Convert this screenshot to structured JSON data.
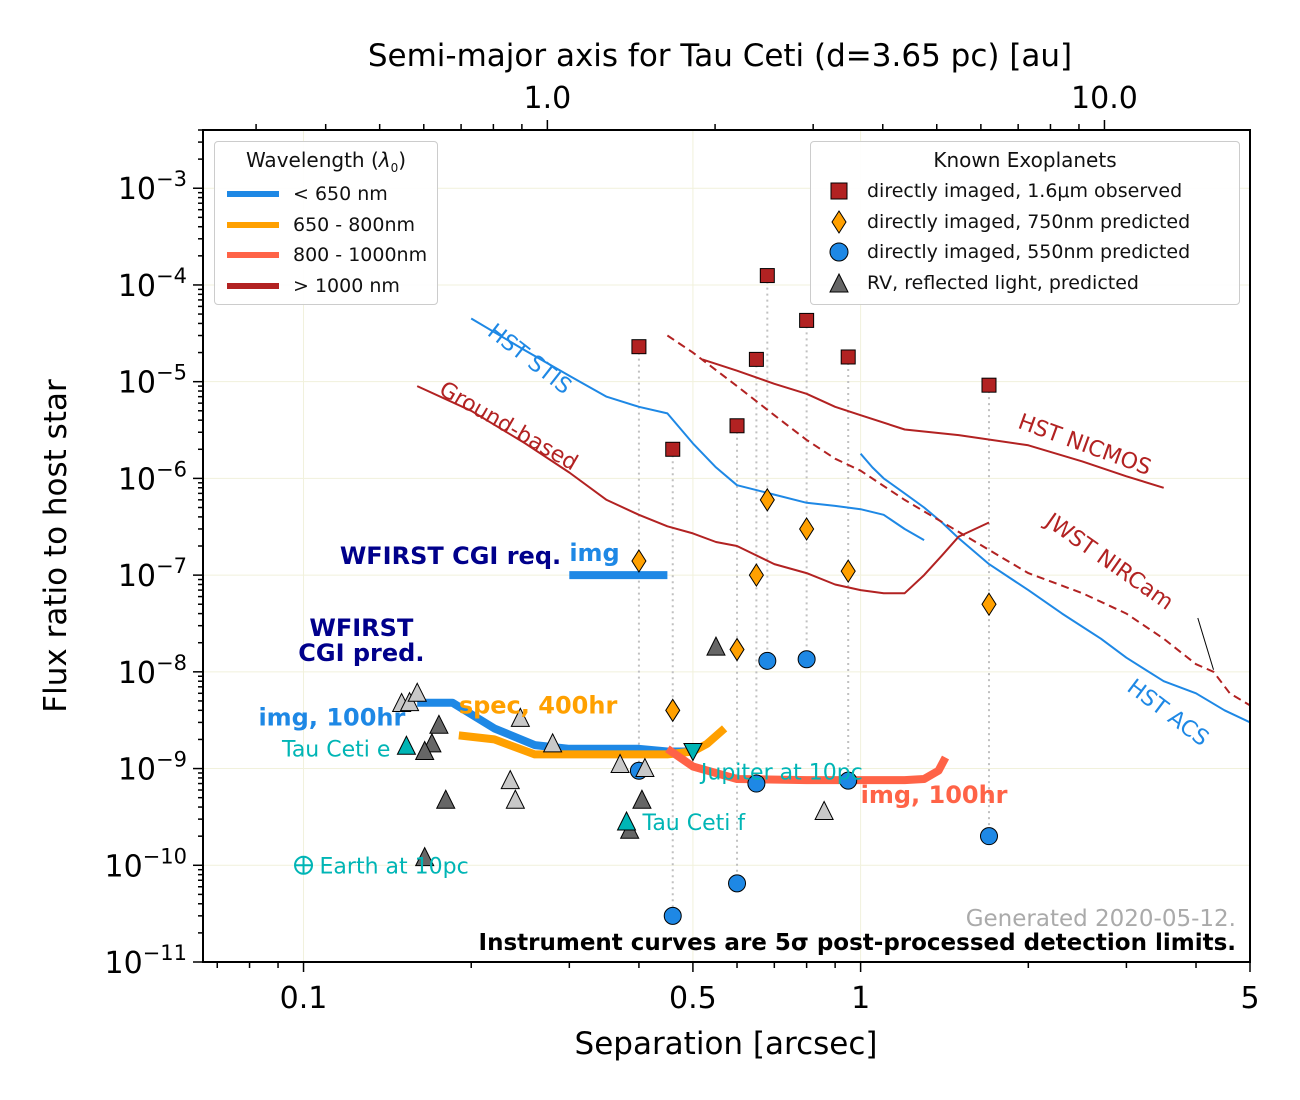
{
  "chart_data": {
    "type": "scatter",
    "title": "",
    "top_axis_label": "Semi-major axis for Tau Ceti (d=3.65 pc) [au]",
    "top_axis_ticks": [
      {
        "value": 1.0,
        "label": "1.0"
      },
      {
        "value": 10.0,
        "label": "10.0"
      }
    ],
    "xlabel": "Separation [arcsec]",
    "ylabel": "Flux ratio to host star",
    "xscale": "log",
    "yscale": "log",
    "xlim": [
      0.066,
      5
    ],
    "ylim": [
      1e-11,
      0.004
    ],
    "x_ticks": [
      {
        "value": 0.1,
        "label": "0.1"
      },
      {
        "value": 0.5,
        "label": "0.5"
      },
      {
        "value": 1,
        "label": "1"
      },
      {
        "value": 5,
        "label": "5"
      }
    ],
    "y_ticks": [
      {
        "value": 1e-11,
        "base": "10",
        "exp": "−11"
      },
      {
        "value": 1e-10,
        "base": "10",
        "exp": "−10"
      },
      {
        "value": 1e-09,
        "base": "10",
        "exp": "−9"
      },
      {
        "value": 1e-08,
        "base": "10",
        "exp": "−8"
      },
      {
        "value": 1e-07,
        "base": "10",
        "exp": "−7"
      },
      {
        "value": 1e-06,
        "base": "10",
        "exp": "−6"
      },
      {
        "value": 1e-05,
        "base": "10",
        "exp": "−5"
      },
      {
        "value": 0.0001,
        "base": "10",
        "exp": "−4"
      },
      {
        "value": 0.001,
        "base": "10",
        "exp": "−3"
      }
    ],
    "grid": true,
    "colors": {
      "blue": "#1e88e5",
      "orange": "#ffa000",
      "salmon": "#ff6347",
      "darkred": "#b22222",
      "navy": "#00008b",
      "teal": "#00b5b5",
      "gray_dark": "#666666",
      "gray_light": "#c8c8c8"
    },
    "instrument_curves": [
      {
        "name": "HST STIS",
        "color": "#1e88e5",
        "dashed": false,
        "width": 2,
        "x": [
          0.2,
          0.25,
          0.3,
          0.35,
          0.4,
          0.45,
          0.5,
          0.55,
          0.6,
          0.7,
          0.8,
          0.9,
          1.0,
          1.1,
          1.2,
          1.3
        ],
        "y": [
          4.5e-05,
          2.1e-05,
          1.15e-05,
          7e-06,
          5.5e-06,
          4.7e-06,
          2.3e-06,
          1.3e-06,
          8.5e-07,
          6.8e-07,
          5.6e-07,
          5.2e-07,
          4.8e-07,
          4.2e-07,
          3e-07,
          2.3e-07
        ]
      },
      {
        "name": "HST ACS",
        "color": "#1e88e5",
        "dashed": false,
        "width": 2,
        "x": [
          1.0,
          1.05,
          1.1,
          1.2,
          1.3,
          1.4,
          1.5,
          1.7,
          2.0,
          2.3,
          2.7,
          3.0,
          3.5,
          4.0,
          4.5,
          5.0
        ],
        "y": [
          1.8e-06,
          1.3e-06,
          1e-06,
          7e-07,
          5e-07,
          3.5e-07,
          2.4e-07,
          1.3e-07,
          7e-08,
          4e-08,
          2.2e-08,
          1.4e-08,
          8e-09,
          6e-09,
          4e-09,
          3e-09
        ]
      },
      {
        "name": "Ground-based",
        "color": "#b22222",
        "dashed": false,
        "width": 2,
        "x": [
          0.16,
          0.2,
          0.25,
          0.3,
          0.35,
          0.4,
          0.45,
          0.5,
          0.55,
          0.6,
          0.7,
          0.8,
          0.9,
          1.0,
          1.1,
          1.2,
          1.3,
          1.4,
          1.5,
          1.7
        ],
        "y": [
          9e-06,
          5e-06,
          2.3e-06,
          1.15e-06,
          6e-07,
          4.2e-07,
          3.2e-07,
          2.7e-07,
          2.2e-07,
          2e-07,
          1.3e-07,
          1.05e-07,
          8e-08,
          7e-08,
          6.5e-08,
          6.5e-08,
          1e-07,
          1.6e-07,
          2.5e-07,
          3.5e-07
        ]
      },
      {
        "name": "HST NICMOS",
        "color": "#b22222",
        "dashed": false,
        "width": 2,
        "x": [
          0.52,
          0.6,
          0.7,
          0.8,
          0.9,
          1.0,
          1.2,
          1.5,
          2.0,
          2.5,
          3.0,
          3.5
        ],
        "y": [
          1.7e-05,
          1.3e-05,
          9.5e-06,
          7.5e-06,
          5.5e-06,
          4.5e-06,
          3.2e-06,
          2.8e-06,
          2.2e-06,
          1.5e-06,
          1.05e-06,
          8e-07
        ]
      },
      {
        "name": "JWST NIRCam",
        "color": "#b22222",
        "dashed": true,
        "width": 2,
        "x": [
          0.45,
          0.5,
          0.6,
          0.7,
          0.8,
          0.9,
          1.0,
          1.2,
          1.5,
          1.8,
          2.0,
          2.5,
          3.0,
          3.5,
          4.0,
          4.3,
          4.6,
          5.0
        ],
        "y": [
          3e-05,
          2e-05,
          9e-06,
          4.5e-06,
          2.5e-06,
          1.6e-06,
          1.2e-06,
          6e-07,
          2.8e-07,
          1.5e-07,
          1.05e-07,
          6.5e-08,
          4e-08,
          2.2e-08,
          1.2e-08,
          1e-08,
          6e-09,
          4.5e-09
        ]
      },
      {
        "name": "WFIRST CGI req.",
        "color": "#1e88e5",
        "dashed": false,
        "width": 8,
        "x": [
          0.3,
          0.45
        ],
        "y": [
          1e-07,
          1e-07
        ]
      },
      {
        "name": "img, 100hr",
        "color": "#1e88e5",
        "dashed": false,
        "width": 8,
        "x": [
          0.16,
          0.185,
          0.22,
          0.26,
          0.3,
          0.35,
          0.4,
          0.45,
          0.5
        ],
        "y": [
          4.8e-09,
          4.8e-09,
          2.6e-09,
          1.75e-09,
          1.6e-09,
          1.6e-09,
          1.6e-09,
          1.5e-09,
          1.5e-09
        ]
      },
      {
        "name": "spec, 400hr",
        "color": "#ffa000",
        "dashed": false,
        "width": 8,
        "x": [
          0.19,
          0.22,
          0.26,
          0.3,
          0.35,
          0.4,
          0.45,
          0.5,
          0.53,
          0.57
        ],
        "y": [
          2.2e-09,
          2e-09,
          1.4e-09,
          1.4e-09,
          1.4e-09,
          1.4e-09,
          1.4e-09,
          1.5e-09,
          1.8e-09,
          2.6e-09
        ]
      },
      {
        "name": "img, 100hr",
        "color": "#ff6347",
        "dashed": false,
        "width": 8,
        "x": [
          0.45,
          0.5,
          0.6,
          0.8,
          1.0,
          1.2,
          1.3,
          1.38,
          1.42
        ],
        "y": [
          1.6e-09,
          1.05e-09,
          7.8e-10,
          7.6e-10,
          7.6e-10,
          7.6e-10,
          7.8e-10,
          9.5e-10,
          1.3e-09
        ]
      }
    ],
    "curve_labels": [
      {
        "text": "HST STIS",
        "color": "#1e88e5",
        "x": 0.25,
        "y": 1.5e-05,
        "rotate": 38
      },
      {
        "text": "Ground-based",
        "color": "#b22222",
        "x": 0.23,
        "y": 3e-06,
        "rotate": 30
      },
      {
        "text": "HST NICMOS",
        "color": "#b22222",
        "x": 2.5,
        "y": 1.9e-06,
        "rotate": 20
      },
      {
        "text": "JWST NIRCam",
        "color": "#b22222",
        "x": 2.75,
        "y": 1.2e-07,
        "rotate": 35
      },
      {
        "text": "HST ACS",
        "color": "#1e88e5",
        "x": 3.5,
        "y": 3.3e-09,
        "rotate": 37
      }
    ],
    "known_planets": {
      "imaged_1600nm": {
        "x": [
          0.4,
          0.46,
          0.6,
          0.65,
          0.68,
          0.8,
          0.95,
          1.7
        ],
        "y": [
          2.3e-05,
          2e-06,
          3.5e-06,
          1.7e-05,
          0.000125,
          4.3e-05,
          1.8e-05,
          9.2e-06
        ]
      },
      "imaged_750nm": {
        "x": [
          0.4,
          0.46,
          0.6,
          0.65,
          0.68,
          0.8,
          0.95,
          1.7
        ],
        "y": [
          1.4e-07,
          4e-09,
          1.7e-08,
          1e-07,
          6e-07,
          3e-07,
          1.1e-07,
          5e-08
        ]
      },
      "imaged_550nm": {
        "x": [
          0.4,
          0.46,
          0.6,
          0.65,
          0.68,
          0.8,
          0.95,
          1.7
        ],
        "y": [
          9.5e-10,
          3e-11,
          6.5e-11,
          7e-10,
          1.3e-08,
          1.35e-08,
          7.5e-10,
          2e-10
        ]
      },
      "dropline_x": [
        0.4,
        0.46,
        0.6,
        0.65,
        0.68,
        0.8,
        0.95,
        1.7
      ],
      "dropline_top": [
        2.3e-05,
        2e-06,
        3.5e-06,
        1.7e-05,
        0.000125,
        4.3e-05,
        1.8e-05,
        9.2e-06
      ],
      "dropline_bottom": [
        9.5e-10,
        3e-11,
        6.5e-11,
        7e-10,
        1.3e-08,
        1.35e-08,
        7.5e-10,
        2e-10
      ]
    },
    "rv_planets": {
      "dark": {
        "x": [
          0.17,
          0.165,
          0.175,
          0.18,
          0.385,
          0.405,
          0.55,
          0.165
        ],
        "y": [
          1.8e-09,
          1.5e-09,
          2.8e-09,
          4.7e-10,
          2.3e-10,
          4.7e-10,
          1.8e-08,
          1.2e-10
        ]
      },
      "light": {
        "x": [
          0.15,
          0.155,
          0.16,
          0.245,
          0.28,
          0.235,
          0.24,
          0.37,
          0.41,
          0.86
        ],
        "y": [
          4.7e-09,
          4.8e-09,
          6e-09,
          3.3e-09,
          1.8e-09,
          7.5e-10,
          4.7e-10,
          1.1e-09,
          1e-09,
          3.6e-10
        ]
      }
    },
    "reference_points": [
      {
        "label": "Tau Ceti e",
        "x": 0.153,
        "y": 1.7e-09,
        "marker": "triangle",
        "color": "#00b5b5",
        "label_side": "left"
      },
      {
        "label": "Tau Ceti f",
        "x": 0.38,
        "y": 2.8e-10,
        "marker": "triangle",
        "color": "#00b5b5",
        "label_side": "right"
      },
      {
        "label": "Jupiter at 10pc",
        "x": 0.5,
        "y": 1.5e-09,
        "marker": "triangle-down",
        "color": "#00b5b5",
        "label_side": "right-below"
      },
      {
        "label": "Earth at 10pc",
        "x": 0.1,
        "y": 1e-10,
        "marker": "earth",
        "color": "#00b5b5",
        "label_side": "right"
      }
    ],
    "annotations": [
      {
        "text": "WFIRST CGI req.",
        "color": "#00008b",
        "x": 0.29,
        "y": 1.3e-07,
        "anchor": "end",
        "size": 24,
        "bold": true
      },
      {
        "text": "img",
        "color": "#1e88e5",
        "x": 0.3,
        "y": 1.4e-07,
        "anchor": "start",
        "size": 24,
        "bold": true
      },
      {
        "text": "WFIRST",
        "color": "#00008b",
        "x": 0.127,
        "y": 2.35e-08,
        "anchor": "middle",
        "size": 24,
        "bold": true
      },
      {
        "text": "CGI pred.",
        "color": "#00008b",
        "x": 0.127,
        "y": 1.3e-08,
        "anchor": "middle",
        "size": 24,
        "bold": true
      },
      {
        "text": "img, 100hr",
        "color": "#1e88e5",
        "x": 0.083,
        "y": 2.8e-09,
        "anchor": "start",
        "size": 24,
        "bold": true
      },
      {
        "text": "spec, 400hr",
        "color": "#ffa000",
        "x": 0.19,
        "y": 3.7e-09,
        "anchor": "start",
        "size": 24,
        "bold": true
      },
      {
        "text": "img, 100hr",
        "color": "#ff6347",
        "x": 1.0,
        "y": 4.4e-10,
        "anchor": "start",
        "size": 24,
        "bold": true
      }
    ],
    "footnote": "Instrument curves are 5σ post-processed detection limits.",
    "generated": "Generated 2020-05-12.",
    "legend_wavelength": {
      "title_main": "Wavelength (",
      "title_symbol": "λ",
      "title_sub": "0",
      "title_end": ")",
      "entries": [
        {
          "label": "< 650 nm",
          "color": "#1e88e5"
        },
        {
          "label": "650 - 800nm",
          "color": "#ffa000"
        },
        {
          "label": "800 - 1000nm",
          "color": "#ff6347"
        },
        {
          "label": "> 1000 nm",
          "color": "#b22222"
        }
      ]
    },
    "legend_planets": {
      "title": "Known Exoplanets",
      "entries": [
        {
          "label": "directly imaged, 1.6μm observed",
          "marker": "square",
          "color": "#b22222"
        },
        {
          "label": "directly imaged, 750nm predicted",
          "marker": "diamond",
          "color": "#ffa000"
        },
        {
          "label": "directly imaged, 550nm predicted",
          "marker": "circle",
          "color": "#1e88e5"
        },
        {
          "label": "RV, reflected light, predicted",
          "marker": "triangle",
          "color": "#666666"
        }
      ]
    }
  }
}
